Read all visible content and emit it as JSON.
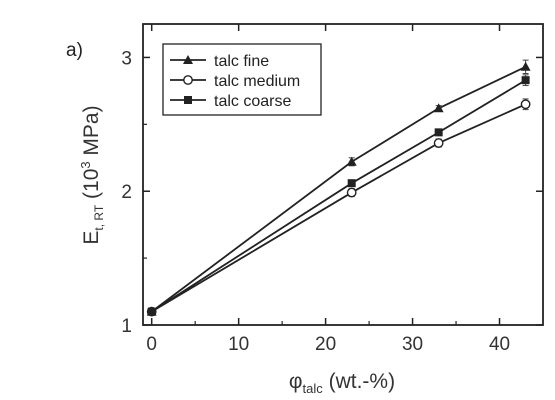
{
  "panel_label": "a)",
  "chart_data": {
    "type": "line",
    "x_title": "φ",
    "x_title_sub": "talc",
    "x_title_rest": " (wt.-%)",
    "y_title_main": "E",
    "y_title_sub": "t, RT",
    "y_title_open": " (10",
    "y_title_sup": "3",
    "y_title_close": " MPa)",
    "xlim": [
      -1,
      45
    ],
    "ylim": [
      1,
      3.25
    ],
    "x_ticks": [
      0,
      10,
      20,
      30,
      40
    ],
    "x_tick_labels": [
      "0",
      "10",
      "20",
      "30",
      "40"
    ],
    "y_ticks": [
      1,
      2,
      3
    ],
    "y_tick_labels": [
      "1",
      "2",
      "3"
    ],
    "legend_position": "top-left",
    "series": [
      {
        "name": "talc fine",
        "marker": "triangle",
        "x": [
          0,
          23,
          33,
          43
        ],
        "y": [
          1.1,
          2.22,
          2.62,
          2.93
        ],
        "err": [
          0.02,
          0.03,
          0.02,
          0.05
        ]
      },
      {
        "name": "talc medium",
        "marker": "circle-open",
        "x": [
          0,
          23,
          33,
          43
        ],
        "y": [
          1.1,
          1.99,
          2.36,
          2.65
        ],
        "err": [
          0.02,
          0.03,
          0.03,
          0.04
        ]
      },
      {
        "name": "talc coarse",
        "marker": "square",
        "x": [
          0,
          23,
          33,
          43
        ],
        "y": [
          1.1,
          2.06,
          2.44,
          2.83
        ],
        "err": [
          0.02,
          0.02,
          0.02,
          0.04
        ]
      }
    ]
  }
}
